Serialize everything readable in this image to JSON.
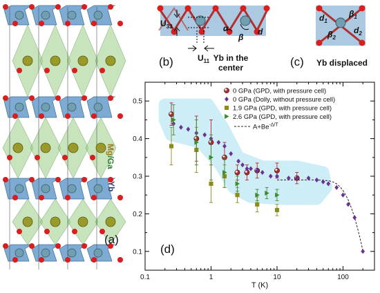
{
  "panels": {
    "a": {
      "label": "(a)",
      "site_label_1_part1": "Mg",
      "site_label_1_part2": "/Ga",
      "site_label_2": "Yb"
    },
    "b": {
      "label": "(b)",
      "caption_line1": "Yb in the",
      "caption_line2": "center",
      "u33_main": "U",
      "u33_sub": "33",
      "u11_main": "U",
      "u11_sub": "11",
      "alpha": "α",
      "beta": "β",
      "d": "d"
    },
    "c": {
      "label": "(c)",
      "caption": "Yb displaced",
      "d1_main": "d",
      "d1_sub": "1",
      "d2_main": "d",
      "d2_sub": "2",
      "beta1_main": "β",
      "beta1_sub": "1",
      "beta2_main": "β",
      "beta2_sub": "2"
    },
    "d": {
      "label": "(d)"
    }
  },
  "colors": {
    "octahedron_blue": "#6fa2cf",
    "prism_green": "#9bcf86",
    "yb_atom": "#6f9fb0",
    "mg_ga_atom": "#9a9a2a",
    "oxygen_atom": "#d81e1e",
    "series_gpd0": "#b3282d",
    "series_dolly": "#6a3393",
    "series_19": "#8c8c1c",
    "series_26": "#3f8a2f",
    "highlight": "#cdeef6",
    "fit_line": "#222222"
  },
  "chart_data": {
    "type": "scatter",
    "xlabel": "T (K)",
    "ylabel": "",
    "x_scale": "log",
    "xlim": [
      0.1,
      300
    ],
    "ylim": [
      0.05,
      0.55
    ],
    "x_ticks": [
      0.1,
      1,
      10,
      100
    ],
    "x_tick_labels": [
      "0.1",
      "1",
      "10",
      "100"
    ],
    "y_ticks": [
      0.1,
      0.2,
      0.3,
      0.4,
      0.5
    ],
    "y_tick_labels": [
      "0.1",
      "0.2",
      "0.3",
      "0.4",
      "0.5"
    ],
    "legend_position": "top-right",
    "series": [
      {
        "name": "0 GPa (GPD, with pressure cell)",
        "marker": "circle",
        "x": [
          0.25,
          0.6,
          1.0,
          1.6,
          2.5,
          3.5,
          5.0,
          10.0,
          20.0
        ],
        "y": [
          0.465,
          0.4,
          0.39,
          0.35,
          0.31,
          0.31,
          0.315,
          0.315,
          0.295
        ],
        "err": [
          0.03,
          0.06,
          0.06,
          0.04,
          0.02,
          0.02,
          0.02,
          0.02,
          0.015
        ]
      },
      {
        "name": "0 GPa (Dolly, without pressure cell)",
        "marker": "diamond",
        "x": [
          0.27,
          0.35,
          0.45,
          0.6,
          0.8,
          1.0,
          1.3,
          1.6,
          2.0,
          2.6,
          3.0,
          3.5,
          4.0,
          5.0,
          6.0,
          8.0,
          10.0,
          15.0,
          20.0,
          30.0,
          40.0,
          50.0,
          60.0,
          80.0,
          100.0,
          120.0,
          150.0,
          200.0
        ],
        "y": [
          0.44,
          0.43,
          0.425,
          0.415,
          0.41,
          0.4,
          0.39,
          0.38,
          0.36,
          0.34,
          0.33,
          0.32,
          0.32,
          0.315,
          0.31,
          0.3,
          0.3,
          0.295,
          0.295,
          0.295,
          0.29,
          0.285,
          0.28,
          0.27,
          0.25,
          0.225,
          0.19,
          0.1
        ],
        "err": []
      },
      {
        "name": "1.9 GPa (GPD, with pressure cell)",
        "marker": "square",
        "x": [
          0.25,
          0.6,
          1.0,
          1.6,
          2.5,
          5.0,
          10.0
        ],
        "y": [
          0.38,
          0.37,
          0.28,
          0.3,
          0.25,
          0.225,
          0.21
        ],
        "err": [
          0.05,
          0.06,
          0.05,
          0.03,
          0.02,
          0.02,
          0.015
        ]
      },
      {
        "name": "2.6 GPa (GPD, with pressure cell)",
        "marker": "triangle",
        "x": [
          0.27,
          0.6,
          1.0,
          1.6,
          2.5,
          5.0,
          7.0,
          10.0
        ],
        "y": [
          0.45,
          0.39,
          0.35,
          0.31,
          0.28,
          0.25,
          0.255,
          0.25
        ],
        "err": [
          0.04,
          0.06,
          0.06,
          0.04,
          0.02,
          0.015,
          0.015,
          0.015
        ]
      }
    ],
    "fit": {
      "name": "A+Be",
      "name_sup": "-Δ/T",
      "T": [
        10,
        20,
        30,
        40,
        50,
        60,
        70,
        80,
        90,
        100,
        110,
        120,
        135,
        150,
        170,
        190,
        200
      ],
      "y": [
        0.29,
        0.29,
        0.29,
        0.29,
        0.289,
        0.288,
        0.285,
        0.28,
        0.272,
        0.262,
        0.25,
        0.237,
        0.214,
        0.19,
        0.155,
        0.12,
        0.1
      ]
    }
  }
}
